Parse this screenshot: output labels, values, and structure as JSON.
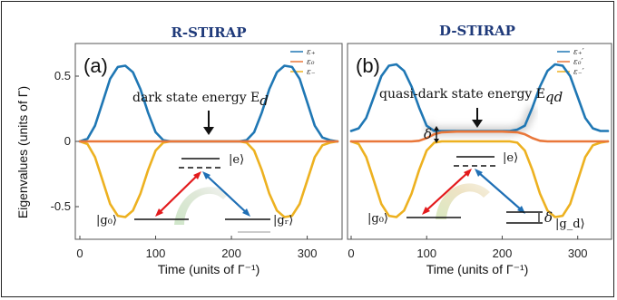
{
  "chart_data": [
    {
      "type": "line",
      "panel_label": "(a)",
      "title": "R-STIRAP",
      "xlabel": "Time (units of Γ⁻¹)",
      "ylabel": "Eigenvalues (units of Γ)",
      "xlim": [
        0,
        340
      ],
      "ylim": [
        -0.75,
        0.75
      ],
      "xticks": [
        "0",
        "100",
        "200",
        "300"
      ],
      "yticks": [
        "0.5",
        "0",
        "-0.5"
      ],
      "legend_position": "top-right",
      "series": [
        {
          "name": "ε₊",
          "color": "#1f77b4",
          "kind": "plus",
          "x": [
            0,
            10,
            20,
            30,
            40,
            50,
            60,
            70,
            80,
            90,
            100,
            110,
            120,
            140,
            160,
            180,
            200,
            210,
            220,
            230,
            240,
            250,
            260,
            270,
            280,
            290,
            300,
            310,
            320,
            330,
            340
          ],
          "y": [
            0,
            0.02,
            0.12,
            0.3,
            0.48,
            0.57,
            0.58,
            0.53,
            0.4,
            0.22,
            0.07,
            0.01,
            0,
            0,
            0,
            0,
            0,
            0,
            0.01,
            0.07,
            0.22,
            0.4,
            0.53,
            0.58,
            0.57,
            0.48,
            0.3,
            0.12,
            0.03,
            0.01,
            0
          ]
        },
        {
          "name": "ε₀",
          "color": "#e9773a",
          "kind": "zero",
          "x": [
            0,
            340
          ],
          "y": [
            0,
            0
          ]
        },
        {
          "name": "ε₋",
          "color": "#edb120",
          "kind": "minus",
          "x": [
            0,
            10,
            20,
            30,
            40,
            50,
            60,
            70,
            80,
            90,
            100,
            110,
            120,
            140,
            160,
            180,
            200,
            210,
            220,
            230,
            240,
            250,
            260,
            270,
            280,
            290,
            300,
            310,
            320,
            330,
            340
          ],
          "y": [
            0,
            -0.02,
            -0.12,
            -0.3,
            -0.48,
            -0.57,
            -0.58,
            -0.53,
            -0.4,
            -0.22,
            -0.07,
            -0.01,
            0,
            0,
            0,
            0,
            0,
            0,
            -0.01,
            -0.07,
            -0.22,
            -0.4,
            -0.53,
            -0.58,
            -0.57,
            -0.48,
            -0.3,
            -0.12,
            -0.03,
            -0.01,
            0
          ]
        }
      ],
      "annotation": "dark state energy E",
      "annotation_sub": "d",
      "states": {
        "excited": "|e⟩",
        "ground_left": "|g₀⟩",
        "ground_right": "|gᵣ⟩"
      }
    },
    {
      "type": "line",
      "panel_label": "(b)",
      "title": "D-STIRAP",
      "xlabel": "Time (units of Γ⁻¹)",
      "ylabel": "",
      "xlim": [
        0,
        340
      ],
      "ylim": [
        -0.75,
        0.75
      ],
      "xticks": [
        "0",
        "100",
        "200",
        "300"
      ],
      "yticks": [],
      "legend_position": "top-right",
      "series": [
        {
          "name": "ε₊′",
          "color": "#1f77b4",
          "kind": "plus",
          "x": [
            0,
            10,
            20,
            30,
            40,
            50,
            60,
            70,
            80,
            90,
            100,
            110,
            120,
            140,
            160,
            180,
            200,
            210,
            220,
            230,
            240,
            250,
            260,
            270,
            280,
            290,
            300,
            310,
            320,
            330,
            340
          ],
          "y": [
            0.08,
            0.1,
            0.18,
            0.34,
            0.5,
            0.58,
            0.59,
            0.54,
            0.42,
            0.26,
            0.12,
            0.08,
            0.08,
            0.08,
            0.08,
            0.08,
            0.08,
            0.08,
            0.09,
            0.12,
            0.26,
            0.42,
            0.54,
            0.59,
            0.58,
            0.5,
            0.34,
            0.18,
            0.1,
            0.08,
            0.08
          ]
        },
        {
          "name": "ε₀′",
          "color": "#e9773a",
          "kind": "zero",
          "x": [
            0,
            80,
            90,
            100,
            110,
            120,
            140,
            160,
            180,
            200,
            220,
            230,
            240,
            250,
            260,
            340
          ],
          "y": [
            0,
            0,
            0.005,
            0.025,
            0.055,
            0.07,
            0.075,
            0.075,
            0.075,
            0.075,
            0.07,
            0.055,
            0.025,
            0.005,
            0,
            0
          ]
        },
        {
          "name": "ε₋′",
          "color": "#edb120",
          "kind": "minus",
          "x": [
            0,
            10,
            20,
            30,
            40,
            50,
            60,
            70,
            80,
            90,
            100,
            110,
            120,
            140,
            160,
            180,
            200,
            210,
            220,
            230,
            240,
            250,
            260,
            270,
            280,
            290,
            300,
            310,
            320,
            330,
            340
          ],
          "y": [
            0,
            -0.02,
            -0.12,
            -0.3,
            -0.48,
            -0.57,
            -0.58,
            -0.53,
            -0.4,
            -0.22,
            -0.07,
            -0.01,
            0,
            0,
            0,
            0,
            0,
            0,
            -0.01,
            -0.07,
            -0.22,
            -0.4,
            -0.53,
            -0.58,
            -0.57,
            -0.48,
            -0.3,
            -0.12,
            -0.03,
            -0.01,
            0
          ]
        }
      ],
      "annotation": "quasi-dark state energy E",
      "annotation_sub": "qd",
      "delta_label": "δ",
      "states": {
        "excited": "|e⟩",
        "ground_left": "|g₀⟩",
        "ground_right": "|g_d⟩"
      }
    }
  ]
}
